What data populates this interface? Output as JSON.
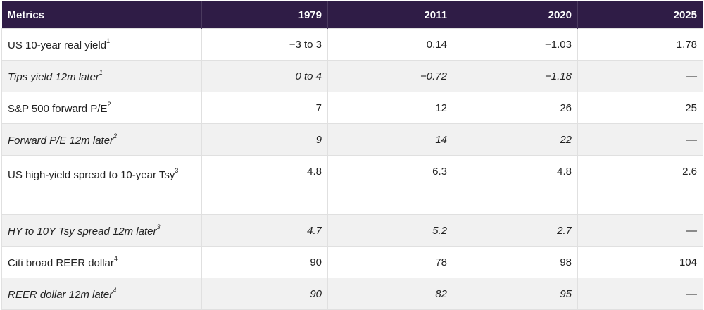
{
  "table": {
    "header": [
      "Metrics",
      "1979",
      "2011",
      "2020",
      "2025"
    ],
    "rows": [
      {
        "label": "US 10-year real yield",
        "note": "1",
        "cells": [
          "−3 to 3",
          "0.14",
          "−1.03",
          "1.78"
        ]
      },
      {
        "label": "Tips yield 12m later",
        "note": "1",
        "cells": [
          "0 to 4",
          "−0.72",
          "−1.18",
          "—"
        ]
      },
      {
        "label": "S&P 500 forward P/E",
        "note": "2",
        "cells": [
          "7",
          "12",
          "26",
          "25"
        ]
      },
      {
        "label": "Forward P/E 12m later",
        "note": "2",
        "cells": [
          "9",
          "14",
          "22",
          "—"
        ]
      },
      {
        "label": "US high-yield spread to 10-year Tsy",
        "note": "3",
        "cells": [
          "4.8",
          "6.3",
          "4.8",
          "2.6"
        ]
      },
      {
        "label": "HY to 10Y Tsy spread 12m later",
        "note": "3",
        "cells": [
          "4.7",
          "5.2",
          "2.7",
          "—"
        ]
      },
      {
        "label": "Citi broad REER dollar",
        "note": "4",
        "cells": [
          "90",
          "78",
          "98",
          "104"
        ]
      },
      {
        "label": "REER dollar 12m later",
        "note": "4",
        "cells": [
          "90",
          "82",
          "95",
          "—"
        ]
      }
    ]
  }
}
